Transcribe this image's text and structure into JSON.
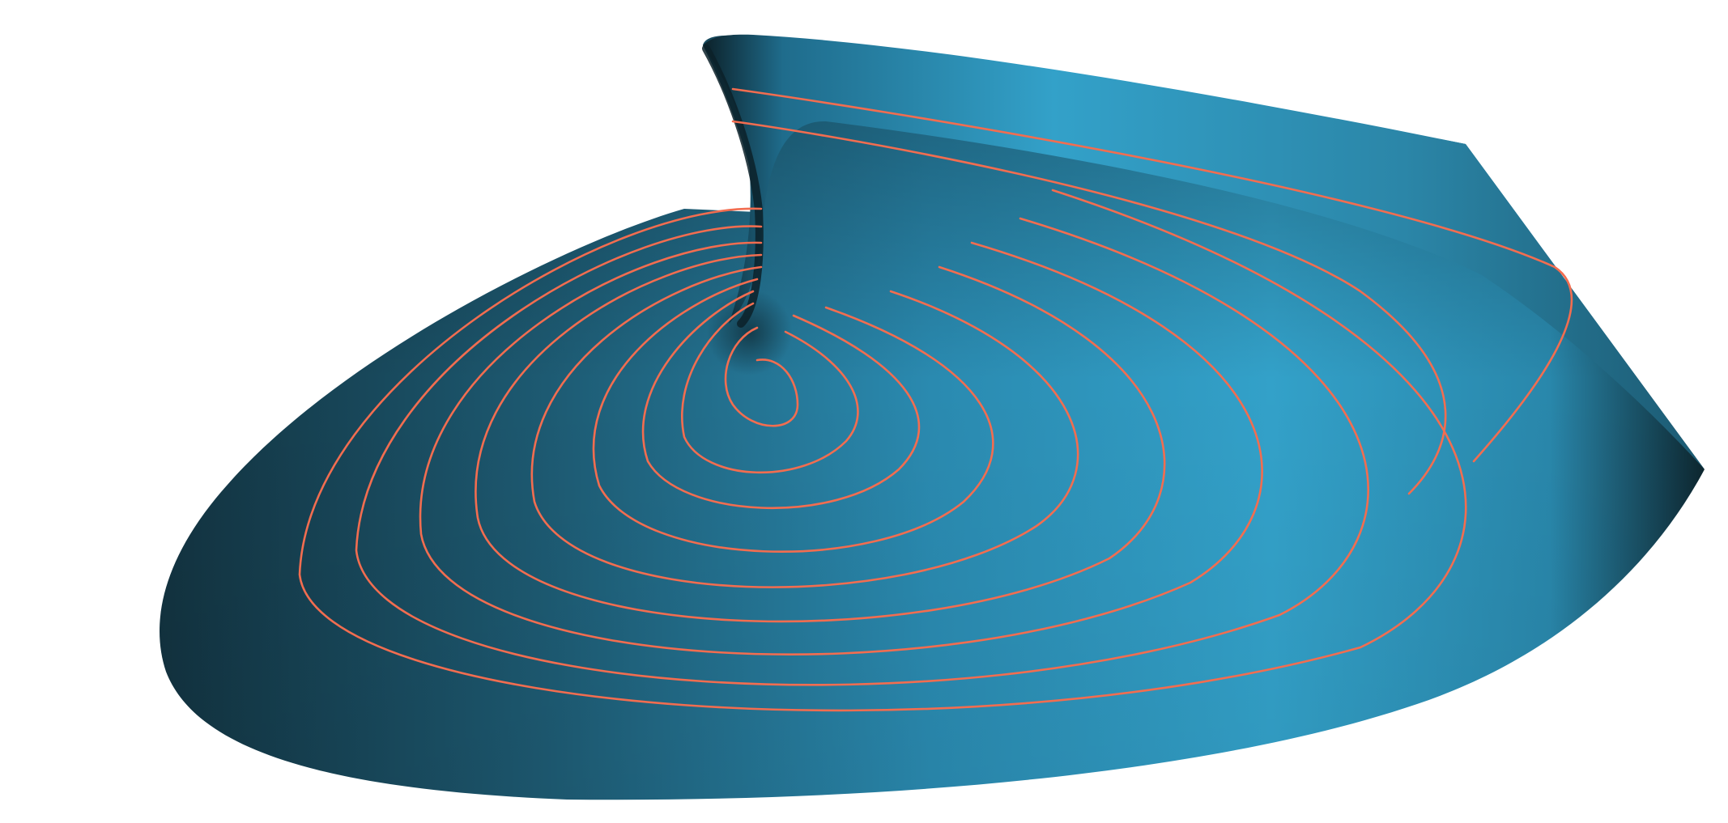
{
  "scene": {
    "background_color": "#ffffff",
    "surface_colors": {
      "highlight": "#33a0c8",
      "mid": "#2a88ad",
      "shadow": "#1b4e63",
      "deep_shadow": "#0d262f"
    },
    "contour_color": "#f26d50",
    "contour_count": 11
  }
}
